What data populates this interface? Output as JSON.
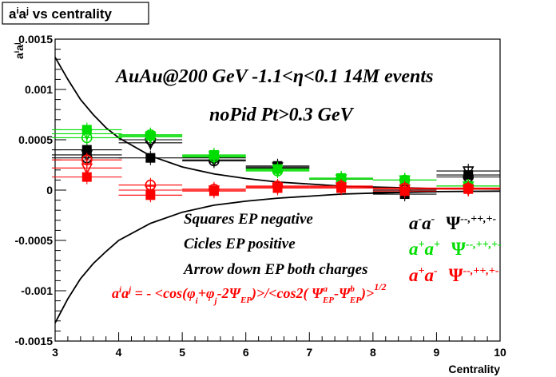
{
  "chart_data": {
    "type": "scatter",
    "title": "a^{i}a^{j} vs centrality",
    "title_parts": {
      "a1": "a",
      "s1": "i",
      "a2": "a",
      "s2": "j",
      "rest": " vs centrality"
    },
    "xlabel": "Centrality",
    "ylabel": "a^{i}a^{j}",
    "ylabel_parts": {
      "a1": "a",
      "s1": "i",
      "a2": "a",
      "s2": "j"
    },
    "xlim": [
      3,
      10
    ],
    "ylim": [
      -0.0015,
      0.0015
    ],
    "x_ticks": [
      3,
      4,
      5,
      6,
      7,
      8,
      9,
      10
    ],
    "x_tick_labels": [
      "3",
      "4",
      "5",
      "6",
      "7",
      "8",
      "9",
      "10"
    ],
    "y_ticks": [
      -0.0015,
      -0.001,
      -0.0005,
      0,
      0.0005,
      0.001,
      0.0015
    ],
    "y_tick_labels": [
      "-0.0015",
      "-0.001",
      "-0.0005",
      "0",
      "0.0005",
      "0.001",
      "0.0015"
    ],
    "grid": false,
    "legend_position": "bottom-right",
    "colors": {
      "black": "#000000",
      "green": "#00dd00",
      "red": "#ff0000"
    },
    "annotations": {
      "header1": "AuAu@200 GeV -1.1<η<0.1 14M events",
      "header2": "noPid Pt>0.3 GeV",
      "note_squares": "Squares EP negative",
      "note_circles": "Cicles EP positive",
      "note_arrows": "Arrow down EP both charges",
      "formula": {
        "lhs": "a",
        "i": "i",
        "a2": "a",
        "j": "j",
        "eq": " = - <cos(φ",
        "sub_i": "i",
        "plus": "+φ",
        "sub_j": "j",
        "minus2": "-2Ψ",
        "sub_ep": "EP",
        "close": ")>/<cos2( Ψ",
        "sup_a": "a",
        "sub_ep2": "EP",
        "dash": "-Ψ",
        "sup_b": "b",
        "sub_ep3": "EP",
        "end": ")>",
        "pow": "1/2"
      }
    },
    "legend": [
      {
        "label_a": "a",
        "sup1": "-",
        "label_b": "a",
        "sup2": "-",
        "psi": "Ψ",
        "psi_sup": "--,++,+-",
        "color": "#000000"
      },
      {
        "label_a": "a",
        "sup1": "+",
        "label_b": "a",
        "sup2": "+",
        "psi": "Ψ",
        "psi_sup": "--,++,+-",
        "color": "#00dd00"
      },
      {
        "label_a": "a",
        "sup1": "+",
        "label_b": "a",
        "sup2": "-",
        "psi": "Ψ",
        "psi_sup": "--,++,+-",
        "color": "#ff0000"
      }
    ],
    "curves": {
      "upper": {
        "x": [
          3.0,
          3.2,
          3.4,
          3.6,
          3.8,
          4.0,
          4.5,
          5.0,
          5.5,
          6.0,
          6.5,
          7.0,
          7.5,
          8.0,
          9.0,
          10.0
        ],
        "y": [
          0.00132,
          0.0011,
          0.0009,
          0.00075,
          0.00062,
          0.00052,
          0.00034,
          0.00023,
          0.00016,
          0.000115,
          8e-05,
          6e-05,
          4e-05,
          3e-05,
          1.5e-05,
          1e-05
        ]
      },
      "lower": {
        "x": [
          3.0,
          3.2,
          3.4,
          3.6,
          3.8,
          4.0,
          4.5,
          5.0,
          5.5,
          6.0,
          6.5,
          7.0,
          7.5,
          8.0,
          9.0,
          10.0
        ],
        "y": [
          -0.00132,
          -0.00108,
          -0.00088,
          -0.00073,
          -0.00061,
          -0.0005,
          -0.00033,
          -0.00022,
          -0.00015,
          -0.00011,
          -8e-05,
          -6e-05,
          -4e-05,
          -3e-05,
          -1.5e-05,
          -1e-05
        ]
      }
    },
    "series": [
      {
        "name": "",
        "color": "#000000",
        "marker": "square",
        "x": [
          3.5,
          4.5,
          5.5,
          6.5,
          7.5,
          8.5,
          9.5
        ],
        "y": [
          0.0004,
          0.00032,
          0.00032,
          0.00024,
          0.00011,
          -4e-05,
          0.00015
        ],
        "bar_half": [
          0.55,
          0.5,
          0.5,
          0.5,
          0.5,
          0.5,
          0.5
        ]
      },
      {
        "name": "",
        "color": "#000000",
        "marker": "circle",
        "x": [
          3.5,
          4.5,
          5.5,
          6.5,
          7.5,
          8.5,
          9.5
        ],
        "y": [
          0.00032,
          0.0005,
          0.00029,
          0.00022,
          0.00011,
          0.0,
          0.00013
        ],
        "bar_half": [
          0.55,
          0.5,
          0.5,
          0.5,
          0.5,
          0.5,
          0.5
        ]
      },
      {
        "name": "",
        "color": "#000000",
        "marker": "triangle-down",
        "x": [
          3.5,
          4.5,
          5.5,
          6.5,
          7.5,
          8.5,
          9.5
        ],
        "y": [
          0.00035,
          0.00047,
          0.0003,
          0.00023,
          0.00011,
          -2e-05,
          0.00019
        ],
        "bar_half": [
          0.55,
          0.5,
          0.5,
          0.5,
          0.5,
          0.5,
          0.5
        ]
      },
      {
        "name": "",
        "color": "#00dd00",
        "marker": "square",
        "x": [
          3.5,
          4.5,
          5.5,
          6.5,
          7.5,
          8.5,
          9.5
        ],
        "y": [
          0.0006,
          0.00054,
          0.00035,
          0.00021,
          0.00012,
          0.0001,
          4e-05
        ],
        "bar_half": [
          0.55,
          0.5,
          0.5,
          0.5,
          0.5,
          0.5,
          0.5
        ]
      },
      {
        "name": "",
        "color": "#00dd00",
        "marker": "circle",
        "x": [
          3.5,
          4.5,
          5.5,
          6.5,
          7.5,
          8.5,
          9.5
        ],
        "y": [
          0.00052,
          0.00055,
          0.00033,
          0.00019,
          0.00011,
          0.0001,
          4e-05
        ],
        "bar_half": [
          0.55,
          0.5,
          0.5,
          0.5,
          0.5,
          0.5,
          0.5
        ]
      },
      {
        "name": "",
        "color": "#00dd00",
        "marker": "triangle-down",
        "x": [
          3.5,
          4.5,
          5.5,
          6.5,
          7.5,
          8.5,
          9.5
        ],
        "y": [
          0.00056,
          0.00053,
          0.00034,
          0.0002,
          0.00011,
          0.0001,
          4e-05
        ],
        "bar_half": [
          0.55,
          0.5,
          0.5,
          0.5,
          0.5,
          0.5,
          0.5
        ]
      },
      {
        "name": "",
        "color": "#ff0000",
        "marker": "square",
        "x": [
          3.5,
          4.5,
          5.5,
          6.5,
          7.5,
          8.5,
          9.5
        ],
        "y": [
          0.00013,
          -5e-05,
          -1e-05,
          2e-05,
          2e-05,
          -1e-05,
          1e-05
        ],
        "bar_half": [
          0.55,
          0.5,
          0.5,
          0.5,
          0.5,
          0.5,
          0.5
        ]
      },
      {
        "name": "",
        "color": "#ff0000",
        "marker": "circle",
        "x": [
          3.5,
          4.5,
          5.5,
          6.5,
          7.5,
          8.5,
          9.5
        ],
        "y": [
          0.0003,
          5e-05,
          1e-05,
          4e-05,
          4e-05,
          2e-05,
          2e-05
        ],
        "bar_half": [
          0.55,
          0.5,
          0.5,
          0.5,
          0.5,
          0.5,
          0.5
        ]
      },
      {
        "name": "",
        "color": "#ff0000",
        "marker": "triangle-down",
        "x": [
          3.5,
          4.5,
          5.5,
          6.5,
          7.5,
          8.5,
          9.5
        ],
        "y": [
          0.00022,
          0.0,
          0.0,
          3e-05,
          3e-05,
          1e-05,
          1e-05
        ],
        "bar_half": [
          0.55,
          0.5,
          0.5,
          0.5,
          0.5,
          0.5,
          0.5
        ]
      }
    ]
  }
}
